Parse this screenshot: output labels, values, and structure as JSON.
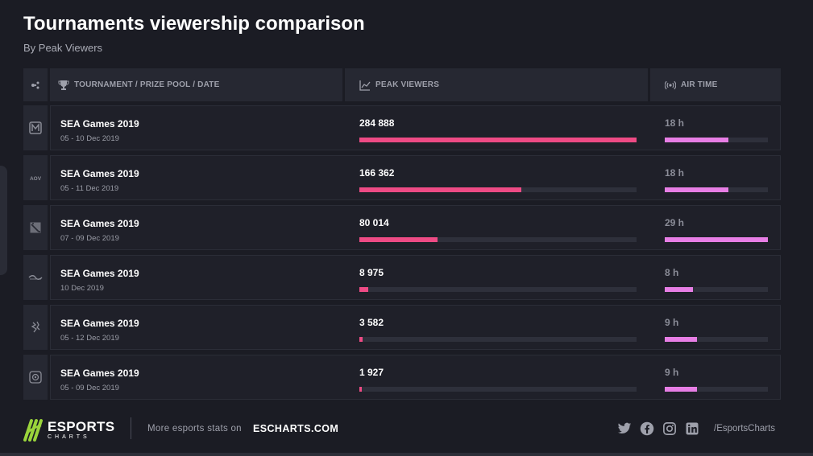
{
  "header": {
    "title": "Tournaments viewership comparison",
    "subtitle": "By Peak Viewers"
  },
  "table": {
    "columns": {
      "game": "",
      "tournament": "TOURNAMENT / PRIZE POOL / DATE",
      "peak_viewers": "PEAK VIEWERS",
      "air_time": "AIR TIME"
    },
    "rows": [
      {
        "game_icon": "mobile-legends-icon",
        "name": "SEA Games 2019",
        "date": "05 - 10 Dec 2019",
        "peak_viewers": "284 888",
        "air_time": "18 h"
      },
      {
        "game_icon": "arena-of-valor-icon",
        "name": "SEA Games 2019",
        "date": "05 - 11 Dec 2019",
        "peak_viewers": "166 362",
        "air_time": "18 h"
      },
      {
        "game_icon": "dota-2-icon",
        "name": "SEA Games 2019",
        "date": "07 - 09 Dec 2019",
        "peak_viewers": "80 014",
        "air_time": "29 h"
      },
      {
        "game_icon": "starcraft-2-icon",
        "name": "SEA Games 2019",
        "date": "10 Dec 2019",
        "peak_viewers": "8 975",
        "air_time": "8 h"
      },
      {
        "game_icon": "tekken-icon",
        "name": "SEA Games 2019",
        "date": "05 - 12 Dec 2019",
        "peak_viewers": "3 582",
        "air_time": "9 h"
      },
      {
        "game_icon": "hearthstone-icon",
        "name": "SEA Games 2019",
        "date": "05 - 09 Dec 2019",
        "peak_viewers": "1 927",
        "air_time": "9 h"
      }
    ]
  },
  "chart_data": {
    "type": "bar",
    "categories": [
      "SEA Games 2019 (05 - 10 Dec 2019)",
      "SEA Games 2019 (05 - 11 Dec 2019)",
      "SEA Games 2019 (07 - 09 Dec 2019)",
      "SEA Games 2019 (10 Dec 2019)",
      "SEA Games 2019 (05 - 12 Dec 2019)",
      "SEA Games 2019 (05 - 09 Dec 2019)"
    ],
    "series": [
      {
        "name": "PEAK VIEWERS",
        "values": [
          284888,
          166362,
          80014,
          8975,
          3582,
          1927
        ],
        "color": "#ee4b85"
      },
      {
        "name": "AIR TIME",
        "values": [
          18,
          18,
          29,
          8,
          9,
          9
        ],
        "unit": "h",
        "color": "#e77ee5"
      }
    ],
    "title": "Tournaments viewership comparison",
    "subtitle": "By Peak Viewers"
  },
  "footer": {
    "logo_main": "ESPORTS",
    "logo_sub": "CHARTS",
    "more_text": "More esports stats on",
    "more_link": "ESCHARTS.COM",
    "social_icons": [
      "twitter-icon",
      "facebook-icon",
      "instagram-icon",
      "linkedin-icon"
    ],
    "handle": "/EsportsCharts"
  },
  "colors": {
    "background": "#1b1c24",
    "peak_bar": "#ee4b85",
    "airtime_bar": "#e77ee5",
    "logo_green": "#9ad43b"
  }
}
